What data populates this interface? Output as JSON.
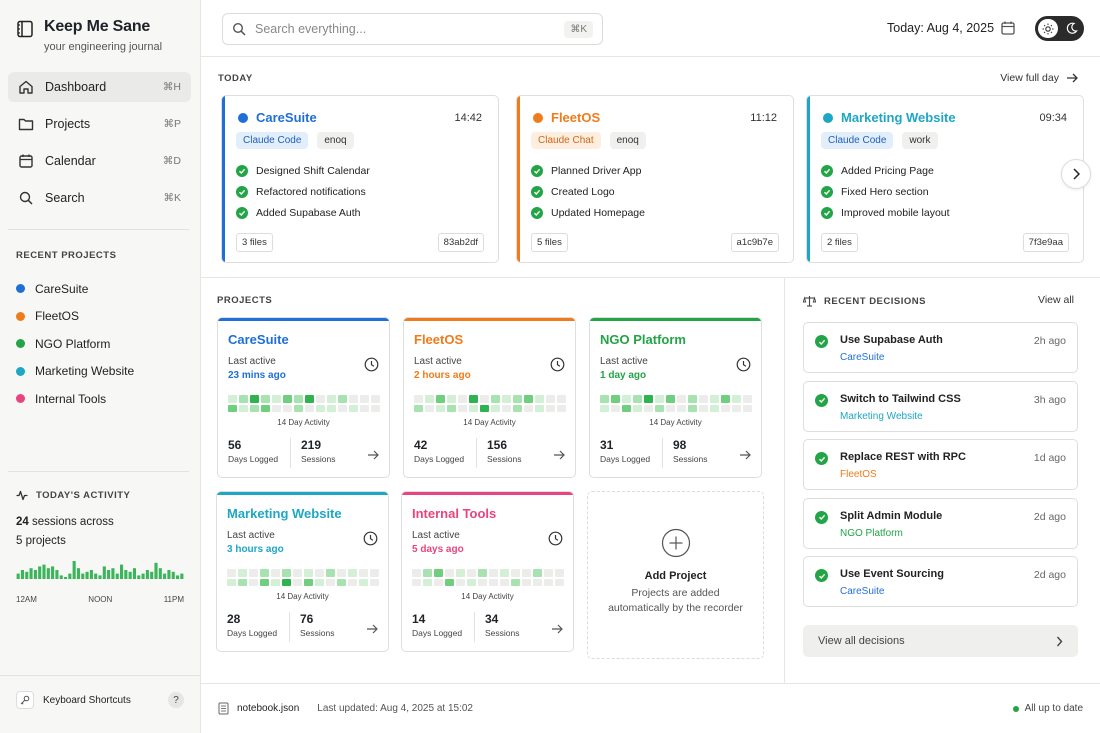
{
  "app": {
    "title": "Keep Me Sane",
    "subtitle": "your engineering journal"
  },
  "nav": [
    {
      "label": "Dashboard",
      "shortcut": "⌘H",
      "icon": "home-icon",
      "active": true
    },
    {
      "label": "Projects",
      "shortcut": "⌘P",
      "icon": "folder-icon"
    },
    {
      "label": "Calendar",
      "shortcut": "⌘D",
      "icon": "calendar-icon"
    },
    {
      "label": "Search",
      "shortcut": "⌘K",
      "icon": "search-icon"
    }
  ],
  "recent_projects": {
    "label": "RECENT PROJECTS",
    "items": [
      {
        "name": "CareSuite",
        "color": "#1f6fd6"
      },
      {
        "name": "FleetOS",
        "color": "#f07b1a"
      },
      {
        "name": "NGO Platform",
        "color": "#22a447"
      },
      {
        "name": "Marketing Website",
        "color": "#1ea7c4"
      },
      {
        "name": "Internal Tools",
        "color": "#e8447f"
      }
    ]
  },
  "activity": {
    "label": "TODAY'S ACTIVITY",
    "sessions": "24",
    "sessions_text": "sessions across",
    "projects_text": "5 projects",
    "axis": [
      "12AM",
      "NOON",
      "11PM"
    ],
    "bars": [
      0.3,
      0.5,
      0.4,
      0.6,
      0.5,
      0.7,
      0.8,
      0.6,
      0.7,
      0.5,
      0.2,
      0.1,
      0.3,
      1.0,
      0.6,
      0.3,
      0.4,
      0.5,
      0.3,
      0.2,
      0.7,
      0.5,
      0.6,
      0.3,
      0.8,
      0.5,
      0.4,
      0.6,
      0.2,
      0.3,
      0.5,
      0.4,
      0.9,
      0.6,
      0.3,
      0.5,
      0.4,
      0.2,
      0.3
    ]
  },
  "keyboard_shortcuts": "Keyboard Shortcuts",
  "help": "?",
  "search": {
    "placeholder": "Search everything...",
    "shortcut": "⌘K"
  },
  "header": {
    "today": "Today: Aug 4, 2025"
  },
  "today_section": {
    "label": "TODAY",
    "view_full_day": "View full day",
    "cards": [
      {
        "name": "CareSuite",
        "time": "14:42",
        "color": "#1f6fd6",
        "tags": [
          "Claude Code",
          "enoq"
        ],
        "tag_bg": "#e3eefb",
        "tag_fg": "#1f5fb8",
        "items": [
          "Designed Shift Calendar",
          "Refactored notifications",
          "Added Supabase Auth"
        ],
        "files": "3 files",
        "commit": "83ab2df"
      },
      {
        "name": "FleetOS",
        "time": "11:12",
        "color": "#f07b1a",
        "tags": [
          "Claude Chat",
          "enoq"
        ],
        "tag_bg": "#fdeedf",
        "tag_fg": "#d0661a",
        "items": [
          "Planned Driver App",
          "Created Logo",
          "Updated Homepage"
        ],
        "files": "5 files",
        "commit": "a1c9b7e"
      },
      {
        "name": "Marketing Website",
        "time": "09:34",
        "color": "#1ea7c4",
        "tags": [
          "Claude Code",
          "work"
        ],
        "tag_bg": "#e3eefb",
        "tag_fg": "#1f5fb8",
        "items": [
          "Added Pricing Page",
          "Fixed Hero section",
          "Improved mobile layout"
        ],
        "files": "2 files",
        "commit": "7f3e9aa"
      }
    ]
  },
  "projects": {
    "label": "PROJECTS",
    "grid_label": "14 Day Activity",
    "last_active_label": "Last active",
    "days_label": "Days Logged",
    "sessions_label": "Sessions",
    "cards": [
      {
        "name": "CareSuite",
        "color": "#1f6fd6",
        "last_active": "23 mins ago",
        "days": "56",
        "sessions": "219",
        "activity": [
          0.2,
          0.4,
          0.9,
          0.3,
          0.2,
          0.6,
          0.3,
          0.9,
          0.1,
          0.2,
          0.3,
          0.1,
          0.1,
          0.1,
          0.5,
          0.2,
          0.3,
          0.7,
          0.1,
          0.1,
          0.4,
          0.1,
          0.2,
          0.2,
          0.1,
          0.2,
          0.1,
          0.1
        ]
      },
      {
        "name": "FleetOS",
        "color": "#f07b1a",
        "last_active": "2 hours ago",
        "days": "42",
        "sessions": "156",
        "activity": [
          0.1,
          0.2,
          0.6,
          0.2,
          0.1,
          0.8,
          0.1,
          0.3,
          0.2,
          0.3,
          0.6,
          0.2,
          0.1,
          0.1,
          0.3,
          0.1,
          0.2,
          0.4,
          0.1,
          0.2,
          0.8,
          0.2,
          0.1,
          0.4,
          0.1,
          0.2,
          0.1,
          0.1
        ]
      },
      {
        "name": "NGO Platform",
        "color": "#22a447",
        "last_active": "1 day ago",
        "days": "31",
        "sessions": "98",
        "activity": [
          0.3,
          0.5,
          0.2,
          0.4,
          0.9,
          0.2,
          0.5,
          0.1,
          0.3,
          0.1,
          0.2,
          0.6,
          0.2,
          0.1,
          0.2,
          0.1,
          0.6,
          0.2,
          0.1,
          0.3,
          0.1,
          0.1,
          0.4,
          0.1,
          0.2,
          0.1,
          0.1,
          0.1
        ]
      },
      {
        "name": "Marketing Website",
        "color": "#1ea7c4",
        "last_active": "3 hours ago",
        "days": "28",
        "sessions": "76",
        "activity": [
          0.1,
          0.2,
          0.1,
          0.3,
          0.1,
          0.4,
          0.1,
          0.2,
          0.1,
          0.3,
          0.1,
          0.2,
          0.1,
          0.1,
          0.2,
          0.3,
          0.1,
          0.7,
          0.2,
          0.9,
          0.1,
          0.5,
          0.2,
          0.1,
          0.3,
          0.1,
          0.2,
          0.1
        ]
      },
      {
        "name": "Internal Tools",
        "color": "#e8447f",
        "last_active": "5 days ago",
        "days": "14",
        "sessions": "34",
        "activity": [
          0.1,
          0.3,
          0.6,
          0.1,
          0.2,
          0.1,
          0.4,
          0.1,
          0.2,
          0.1,
          0.1,
          0.3,
          0.1,
          0.1,
          0.1,
          0.2,
          0.1,
          0.7,
          0.1,
          0.2,
          0.1,
          0.1,
          0.1,
          0.3,
          0.1,
          0.1,
          0.1,
          0.1
        ]
      }
    ],
    "add": {
      "title": "Add Project",
      "desc": "Projects are added automatically by the recorder"
    }
  },
  "decisions": {
    "label": "RECENT DECISIONS",
    "view_all": "View all",
    "items": [
      {
        "title": "Use Supabase Auth",
        "project": "CareSuite",
        "color": "#1f6fd6",
        "age": "2h ago"
      },
      {
        "title": "Switch to Tailwind CSS",
        "project": "Marketing Website",
        "color": "#1ea7c4",
        "age": "3h ago"
      },
      {
        "title": "Replace REST with RPC",
        "project": "FleetOS",
        "color": "#f07b1a",
        "age": "1d ago"
      },
      {
        "title": "Split Admin Module",
        "project": "NGO Platform",
        "color": "#22a447",
        "age": "2d ago"
      },
      {
        "title": "Use Event Sourcing",
        "project": "CareSuite",
        "color": "#1f6fd6",
        "age": "2d ago"
      }
    ],
    "view_all_decisions": "View all decisions"
  },
  "footer": {
    "file": "notebook.json",
    "updated": "Last updated: Aug 4, 2025 at 15:02",
    "status": "All up to date"
  }
}
